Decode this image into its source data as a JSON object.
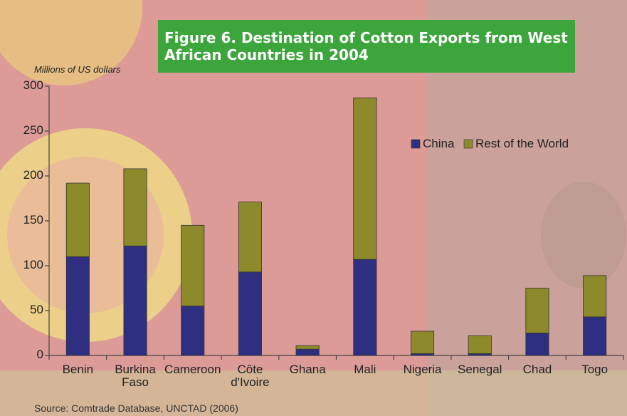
{
  "chart_data": {
    "type": "stacked_bar",
    "title": "Figure 6. Destination of Cotton Exports from West African Countries in 2004",
    "y_label": "Millions of US dollars",
    "source": "Source: Comtrade Database, UNCTAD (2006)",
    "categories": [
      "Benin",
      "Burkina Faso",
      "Cameroon",
      "Côte d'Ivoire",
      "Ghana",
      "Mali",
      "Nigeria",
      "Senegal",
      "Chad",
      "Togo"
    ],
    "series": [
      {
        "name": "China",
        "color": "#2e2f80",
        "values": [
          110,
          122,
          55,
          93,
          7,
          107,
          2,
          2,
          25,
          43
        ]
      },
      {
        "name": "Rest of the World",
        "color": "#8d8a2c",
        "values": [
          82,
          86,
          90,
          78,
          4,
          180,
          25,
          20,
          50,
          46
        ]
      }
    ],
    "ylim": [
      0,
      300
    ],
    "yticks": [
      0,
      50,
      100,
      150,
      200,
      250,
      300
    ]
  }
}
